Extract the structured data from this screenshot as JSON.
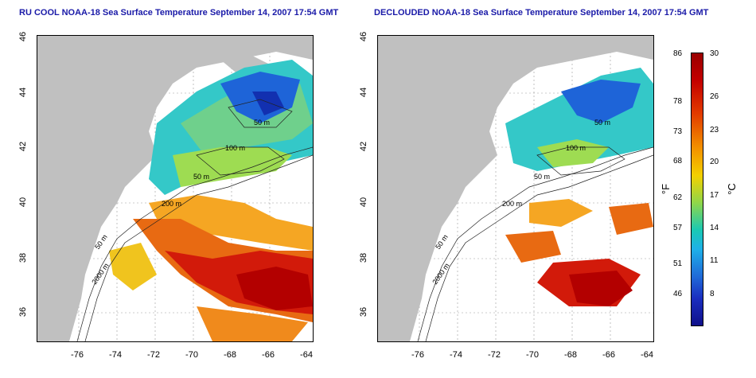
{
  "titles": {
    "left": "RU COOL NOAA-18 Sea Surface Temperature September 14, 2007 17:54 GMT",
    "right": "DECLOUDED NOAA-18 Sea Surface Temperature September 14, 2007 17:54 GMT"
  },
  "axes": {
    "y_ticks": [
      "46",
      "44",
      "42",
      "40",
      "38",
      "36"
    ],
    "x_ticks": [
      "-76",
      "-74",
      "-72",
      "-70",
      "-68",
      "-66",
      "-64"
    ]
  },
  "contour_labels": {
    "left": [
      "50 m",
      "100 m",
      "50 m",
      "200 m",
      "50 m",
      "2000 m"
    ],
    "right": [
      "50 m",
      "100 m",
      "50 m",
      "200 m",
      "50 m",
      "2000 m"
    ]
  },
  "colorbar": {
    "f_labels": [
      "86",
      "78",
      "73",
      "68",
      "62",
      "57",
      "51",
      "46"
    ],
    "c_labels": [
      "30",
      "26",
      "23",
      "20",
      "17",
      "14",
      "11",
      "8"
    ],
    "f_unit": "°F",
    "c_unit": "°C"
  },
  "colors": {
    "land": "#c0c0c0",
    "title": "#1a1aa8",
    "ocean_nodata": "#ffffff"
  }
}
